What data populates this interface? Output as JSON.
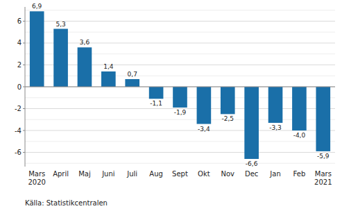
{
  "chart_data": {
    "type": "bar",
    "categories": [
      "Mars\n2020",
      "April",
      "Maj",
      "Juni",
      "Juli",
      "Aug",
      "Sept",
      "Okt",
      "Nov",
      "Dec",
      "Jan",
      "Feb",
      "Mars\n2021"
    ],
    "values": [
      6.9,
      5.3,
      3.6,
      1.4,
      0.7,
      -1.1,
      -1.9,
      -3.4,
      -2.5,
      -6.6,
      -3.3,
      -4.0,
      -5.9
    ],
    "value_labels": [
      "6,9",
      "5,3",
      "3,6",
      "1,4",
      "0,7",
      "-1,1",
      "-1,9",
      "-3,4",
      "-2,5",
      "-6,6",
      "-3,3",
      "-4,0",
      "-5,9"
    ],
    "data_labels": true,
    "color": "#1a6fa8",
    "ylim": [
      -7.3,
      7.3
    ],
    "yticks": [
      -6,
      -4,
      -2,
      0,
      2,
      4,
      6
    ],
    "yticks_minor": [
      -7,
      -5,
      -3,
      -1,
      1,
      3,
      5,
      7
    ],
    "grid": true,
    "source": "Källa: Statistikcentralen"
  }
}
